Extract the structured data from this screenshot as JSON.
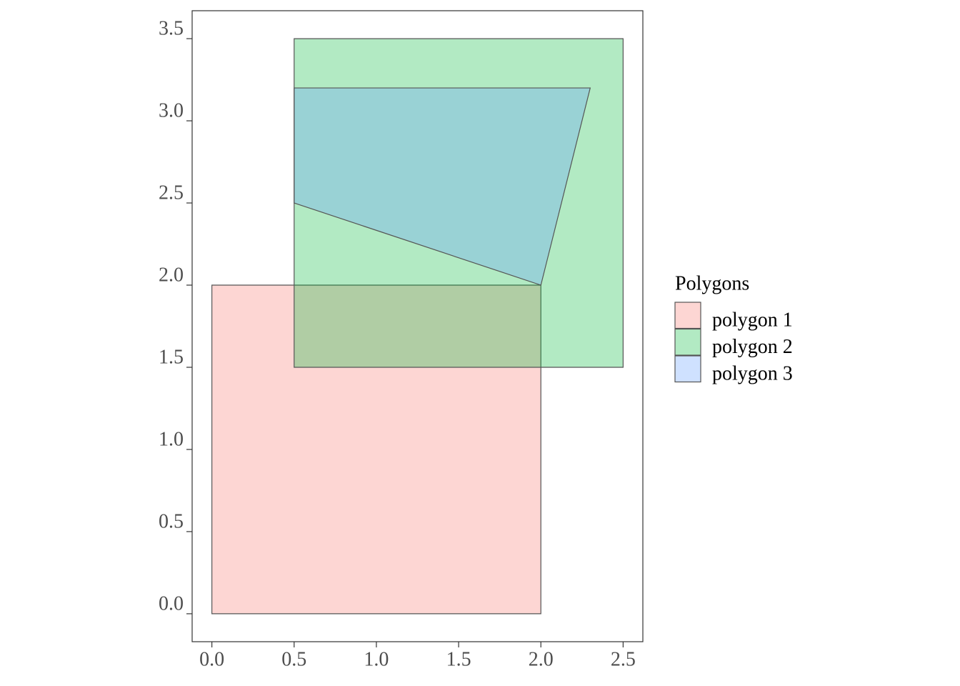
{
  "chart_data": {
    "type": "polygon",
    "legend_title": "Polygons",
    "legend_position": "right",
    "alpha": 0.3,
    "series": [
      {
        "name": "polygon 1",
        "color": "#F8766D",
        "x": [
          0,
          2,
          2,
          0
        ],
        "y": [
          0,
          0,
          2,
          2
        ]
      },
      {
        "name": "polygon 2",
        "color": "#00BA38",
        "x": [
          0.5,
          2.5,
          2.5,
          0.5
        ],
        "y": [
          1.5,
          1.5,
          3.5,
          3.5
        ]
      },
      {
        "name": "polygon 3",
        "color": "#619CFF",
        "x": [
          0.5,
          2,
          2.3,
          0.5
        ],
        "y": [
          2.5,
          2,
          3.2,
          3.2
        ]
      }
    ],
    "xlim": [
      -0.12,
      2.62
    ],
    "ylim": [
      -0.17,
      3.67
    ],
    "xticks": [
      {
        "value": 0,
        "label": "0.0"
      },
      0.5,
      {
        "value": 1,
        "label": "1.0"
      },
      1.5,
      {
        "value": 2,
        "label": "2.0"
      },
      2.5
    ],
    "yticks": [
      {
        "value": 0,
        "label": "0.0"
      },
      0.5,
      {
        "value": 1,
        "label": "1.0"
      },
      1.5,
      {
        "value": 2,
        "label": "2.0"
      },
      2.5,
      {
        "value": 3,
        "label": "3.0"
      },
      3.5
    ]
  }
}
